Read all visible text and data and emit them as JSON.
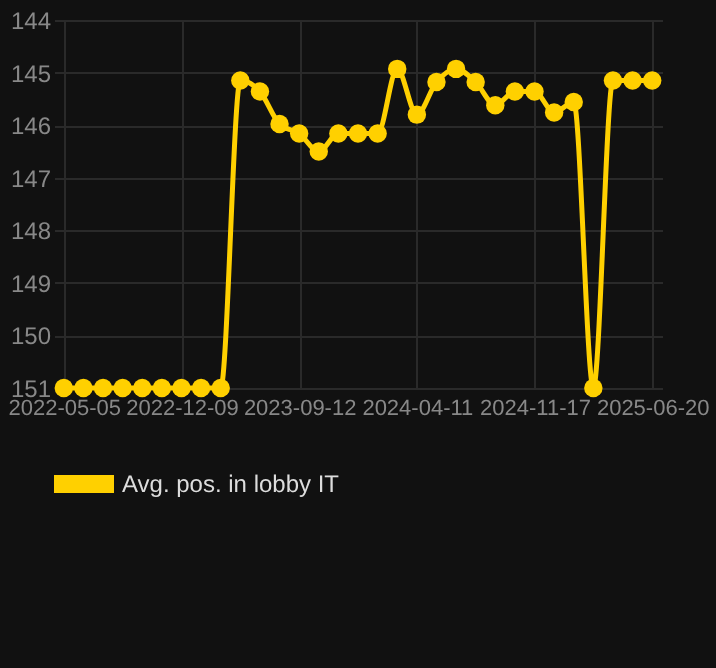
{
  "chart_data": {
    "type": "line",
    "categories": [
      "2022-05-05",
      null,
      null,
      null,
      null,
      null,
      "2022-12-09",
      null,
      null,
      null,
      null,
      null,
      "2023-09-12",
      null,
      null,
      null,
      null,
      null,
      "2024-04-11",
      null,
      null,
      null,
      null,
      null,
      "2024-11-17",
      null,
      null,
      null,
      null,
      null,
      "2025-06-20"
    ],
    "series": [
      {
        "name": "Avg. pos. in lobby IT",
        "color": "#ffd000",
        "values": [
          151,
          151,
          151,
          151,
          151,
          151,
          151,
          151,
          151,
          145.15,
          145.36,
          145.98,
          146.16,
          146.5,
          146.16,
          146.16,
          146.16,
          144.93,
          145.8,
          145.18,
          144.93,
          145.18,
          145.62,
          145.36,
          145.36,
          145.76,
          145.56,
          151,
          145.15,
          145.15,
          145.15
        ]
      }
    ],
    "ylim": [
      151,
      144
    ],
    "yticks": [
      144,
      145,
      146,
      147,
      148,
      149,
      150,
      151
    ],
    "grid": true,
    "legend": "bottom",
    "marker": "circle",
    "line_style": "solid"
  }
}
